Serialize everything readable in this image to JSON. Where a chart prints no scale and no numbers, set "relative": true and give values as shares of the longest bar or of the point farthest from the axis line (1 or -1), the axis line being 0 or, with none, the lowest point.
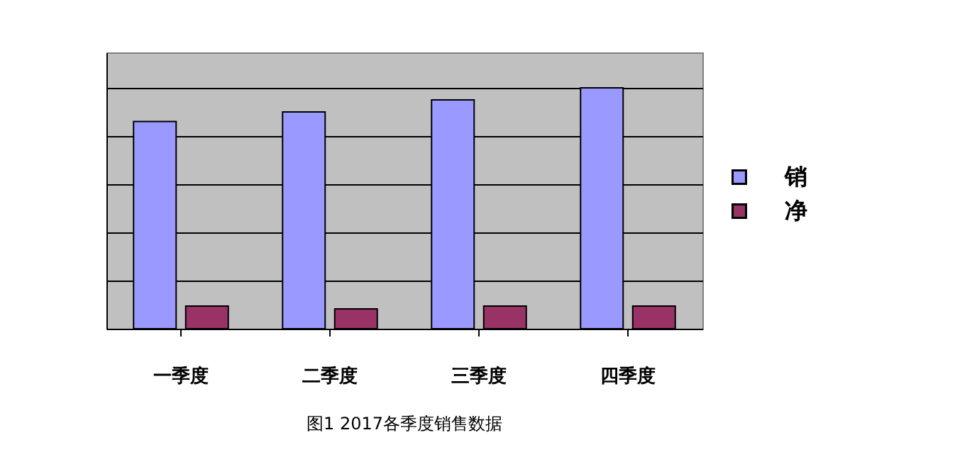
{
  "chart_data": {
    "type": "bar",
    "title": "图1 2017各季度销售数据",
    "categories": [
      "一季度",
      "二季度",
      "三季度",
      "四季度"
    ],
    "relative": true,
    "grid": "y",
    "legend": "right",
    "series": [
      {
        "name": "销",
        "color": "#9999ff",
        "values": [
          0.86,
          0.9,
          0.95,
          1.0
        ]
      },
      {
        "name": "净",
        "color": "#993366",
        "values": [
          0.094,
          0.082,
          0.094,
          0.094
        ]
      }
    ]
  }
}
